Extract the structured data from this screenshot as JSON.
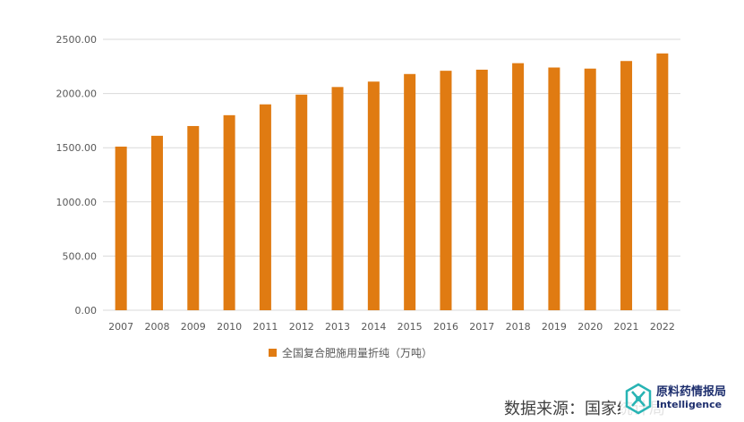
{
  "chart_data": {
    "type": "bar",
    "categories": [
      "2007",
      "2008",
      "2009",
      "2010",
      "2011",
      "2012",
      "2013",
      "2014",
      "2015",
      "2016",
      "2017",
      "2018",
      "2019",
      "2020",
      "2021",
      "2022"
    ],
    "series": [
      {
        "name": "全国复合肥施用量折纯（万吨）",
        "values": [
          1510,
          1610,
          1700,
          1800,
          1900,
          1990,
          2060,
          2110,
          2180,
          2210,
          2220,
          2280,
          2240,
          2230,
          2300,
          2370
        ]
      }
    ],
    "yticks": [
      "0.00",
      "500.00",
      "1000.00",
      "1500.00",
      "2000.00",
      "2500.00"
    ],
    "ylim": [
      0,
      2500
    ],
    "grid": true,
    "legend_position": "bottom",
    "bar_color": "#e07b12",
    "grid_color": "#d9d9d9"
  },
  "source": "数据来源：国家统计局",
  "logo": {
    "name_cn": "原料药情报局",
    "name_en": "Intelligence",
    "icon": "hexagon-molecule-icon",
    "color": "#1e2f6e",
    "accent": "#28b4b4"
  }
}
